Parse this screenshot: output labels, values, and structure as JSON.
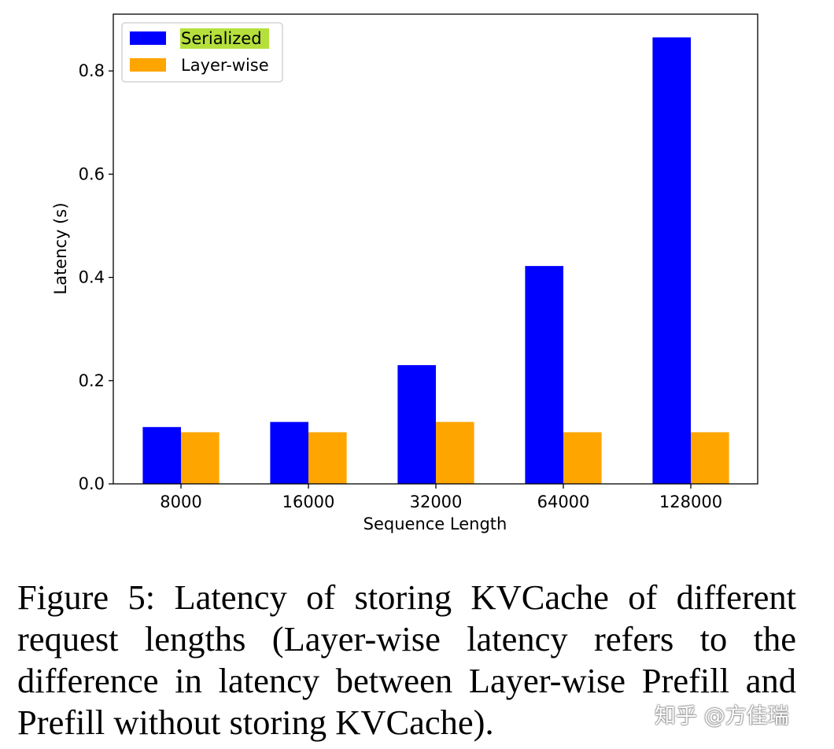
{
  "chart_data": {
    "type": "bar",
    "categories": [
      "8000",
      "16000",
      "32000",
      "64000",
      "128000"
    ],
    "series": [
      {
        "name": "Serialized",
        "values": [
          0.11,
          0.12,
          0.23,
          0.422,
          0.865
        ],
        "color": "#0000ff"
      },
      {
        "name": "Layer-wise",
        "values": [
          0.1,
          0.1,
          0.12,
          0.1,
          0.1
        ],
        "color": "#ffa500"
      }
    ],
    "xlabel": "Sequence Length",
    "ylabel": "Latency (s)",
    "ylim": [
      0,
      0.91
    ],
    "yticks": [
      "0.0",
      "0.2",
      "0.4",
      "0.6",
      "0.8"
    ],
    "grid": false,
    "legend_position": "top-left",
    "legend_highlight_color": "#b5e03c"
  },
  "caption": "Figure 5: Latency of storing KVCache of different request lengths (Layer-wise latency refers to the difference in latency between Layer-wise Prefill and Prefill without storing KVCache).",
  "watermark": "知乎 @方佳瑞"
}
